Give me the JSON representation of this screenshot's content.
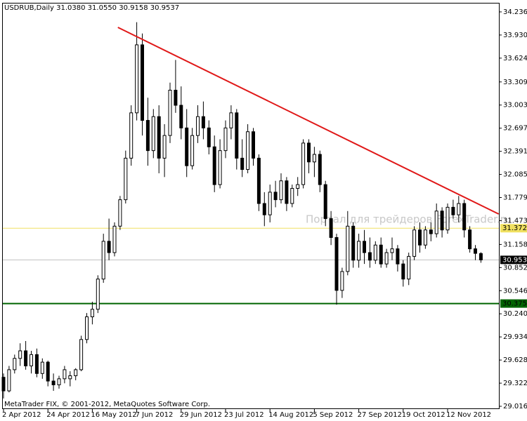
{
  "chart_data": {
    "type": "candlestick",
    "title": "USDRUB,Daily  31.0380 31.0550 30.9158 30.9537",
    "footer": "MetaTrader FIX, © 2001-2012, MetaQuotes Software Corp.",
    "watermark": "Портал для трейдеров ForexTrader.ru",
    "categories": [
      "2 Apr 2012",
      null,
      null,
      null,
      null,
      null,
      null,
      null,
      "24 Apr 2012",
      null,
      null,
      null,
      null,
      null,
      null,
      null,
      "16 May 2012",
      null,
      null,
      null,
      null,
      null,
      null,
      null,
      "7 Jun 2012",
      null,
      null,
      null,
      null,
      null,
      null,
      null,
      "29 Jun 2012",
      null,
      null,
      null,
      null,
      null,
      null,
      null,
      "23 Jul 2012",
      null,
      null,
      null,
      null,
      null,
      null,
      null,
      "14 Aug 2012",
      null,
      null,
      null,
      null,
      null,
      null,
      null,
      "5 Sep 2012",
      null,
      null,
      null,
      null,
      null,
      null,
      null,
      "27 Sep 2012",
      null,
      null,
      null,
      null,
      null,
      null,
      null,
      "19 Oct 2012",
      null,
      null,
      null,
      null,
      null,
      null,
      null,
      "12 Nov 2012",
      null,
      null,
      null,
      null,
      null,
      null
    ],
    "open": [
      29.4,
      29.22,
      29.5,
      29.65,
      29.75,
      29.55,
      29.7,
      29.45,
      29.6,
      29.35,
      29.3,
      29.38,
      29.38,
      29.42,
      29.5,
      29.9,
      30.2,
      30.3,
      30.7,
      31.2,
      31.05,
      31.4,
      31.75,
      32.3,
      32.9,
      33.8,
      32.8,
      32.4,
      32.85,
      32.3,
      32.6,
      33.2,
      33.0,
      32.7,
      32.2,
      32.6,
      32.85,
      32.7,
      32.45,
      31.95,
      32.4,
      32.7,
      32.9,
      32.3,
      32.15,
      32.65,
      32.3,
      31.7,
      31.55,
      31.85,
      31.75,
      32.0,
      31.7,
      31.9,
      31.95,
      32.5,
      32.25,
      32.35,
      31.95,
      31.5,
      31.25,
      30.55,
      30.8,
      31.4,
      30.95,
      31.2,
      31.05,
      30.95,
      31.15,
      30.9,
      31.05,
      31.1,
      30.9,
      30.7,
      31.0,
      31.35,
      31.15,
      31.35,
      31.3,
      31.6,
      31.35,
      31.65,
      31.55,
      31.7,
      31.35,
      31.1,
      31.038
    ],
    "high": [
      29.45,
      29.55,
      29.7,
      29.85,
      29.88,
      29.75,
      29.78,
      29.65,
      29.62,
      29.45,
      29.42,
      29.55,
      29.48,
      29.52,
      29.95,
      30.25,
      30.4,
      30.75,
      31.3,
      31.5,
      31.45,
      31.8,
      32.4,
      33.0,
      34.1,
      33.95,
      33.1,
      32.95,
      33.0,
      32.75,
      33.3,
      33.6,
      33.25,
      32.95,
      32.7,
      33.0,
      33.05,
      32.8,
      32.6,
      32.55,
      32.8,
      33.0,
      32.95,
      32.55,
      32.75,
      32.7,
      32.35,
      31.85,
      31.95,
      32.0,
      32.1,
      32.05,
      31.95,
      32.05,
      32.55,
      32.55,
      32.45,
      32.4,
      32.0,
      31.6,
      31.3,
      30.85,
      31.6,
      31.45,
      31.3,
      31.35,
      31.25,
      31.2,
      31.25,
      31.1,
      31.25,
      31.15,
      30.95,
      31.05,
      31.4,
      31.45,
      31.4,
      31.45,
      31.7,
      31.65,
      31.7,
      31.75,
      31.8,
      31.75,
      31.4,
      31.15,
      31.055
    ],
    "low": [
      29.12,
      29.2,
      29.45,
      29.55,
      29.5,
      29.45,
      29.4,
      29.38,
      29.28,
      29.22,
      29.25,
      29.32,
      29.28,
      29.36,
      29.48,
      29.85,
      30.1,
      30.25,
      30.65,
      30.95,
      31.0,
      31.35,
      31.7,
      32.2,
      32.8,
      32.6,
      32.2,
      32.3,
      32.1,
      32.05,
      32.5,
      32.9,
      32.55,
      32.05,
      32.15,
      32.5,
      32.55,
      32.35,
      31.85,
      31.9,
      32.3,
      32.55,
      32.15,
      32.05,
      32.1,
      32.2,
      31.6,
      31.4,
      31.45,
      31.65,
      31.7,
      31.6,
      31.65,
      31.8,
      31.9,
      32.1,
      32.05,
      31.85,
      31.4,
      31.15,
      30.36,
      30.45,
      30.75,
      30.85,
      30.85,
      30.9,
      30.85,
      30.9,
      30.85,
      30.85,
      30.95,
      30.8,
      30.6,
      30.62,
      30.95,
      31.05,
      31.1,
      31.2,
      31.25,
      31.25,
      31.3,
      31.5,
      31.45,
      31.25,
      31.05,
      30.95,
      30.9158
    ],
    "close": [
      29.22,
      29.5,
      29.65,
      29.75,
      29.55,
      29.7,
      29.45,
      29.6,
      29.35,
      29.3,
      29.38,
      29.5,
      29.42,
      29.5,
      29.9,
      30.2,
      30.3,
      30.7,
      31.2,
      31.05,
      31.4,
      31.75,
      32.3,
      32.9,
      33.8,
      32.8,
      32.4,
      32.85,
      32.3,
      32.6,
      33.2,
      33.0,
      32.7,
      32.2,
      32.6,
      32.85,
      32.7,
      32.45,
      31.95,
      32.4,
      32.7,
      32.9,
      32.3,
      32.15,
      32.65,
      32.3,
      31.7,
      31.55,
      31.85,
      31.75,
      32.0,
      31.7,
      31.9,
      31.95,
      32.5,
      32.25,
      32.35,
      31.95,
      31.5,
      31.25,
      30.55,
      30.8,
      31.4,
      30.95,
      31.2,
      31.05,
      30.95,
      31.15,
      30.9,
      31.05,
      31.1,
      30.9,
      30.7,
      31.0,
      31.35,
      31.15,
      31.35,
      31.3,
      31.6,
      31.35,
      31.65,
      31.55,
      31.7,
      31.35,
      31.1,
      31.04,
      30.9537
    ],
    "ylim": [
      28.979,
      34.347
    ],
    "yticks": [
      {
        "value": 34.236,
        "label": "34.2360"
      },
      {
        "value": 33.93,
        "label": "33.9300"
      },
      {
        "value": 33.624,
        "label": "33.6240"
      },
      {
        "value": 33.309,
        "label": "33.3090"
      },
      {
        "value": 33.003,
        "label": "33.0030"
      },
      {
        "value": 32.697,
        "label": "32.6970"
      },
      {
        "value": 32.391,
        "label": "32.3910"
      },
      {
        "value": 32.085,
        "label": "32.0850"
      },
      {
        "value": 31.779,
        "label": "31.7790"
      },
      {
        "value": 31.473,
        "label": "31.4730"
      },
      {
        "value": 31.158,
        "label": "31.1580"
      },
      {
        "value": 30.852,
        "label": "30.8520"
      },
      {
        "value": 30.546,
        "label": "30.5460"
      },
      {
        "value": 30.24,
        "label": "30.2400"
      },
      {
        "value": 29.934,
        "label": "29.9340"
      },
      {
        "value": 29.628,
        "label": "29.6280"
      },
      {
        "value": 29.322,
        "label": "29.3220"
      },
      {
        "value": 29.016,
        "label": "29.0160"
      }
    ],
    "grid": false,
    "levels": [
      {
        "value": 31.3729,
        "color": "#f0e060",
        "width": 1
      },
      {
        "value": 30.9537,
        "color": "#c0c0c0",
        "width": 1,
        "label_bg": "#000000"
      },
      {
        "value": 30.3759,
        "color": "#006400",
        "width": 2
      }
    ],
    "trendline": {
      "color": "#e01818",
      "x": [
        20.6,
        89.2
      ],
      "y": [
        34.031,
        31.561
      ]
    }
  }
}
